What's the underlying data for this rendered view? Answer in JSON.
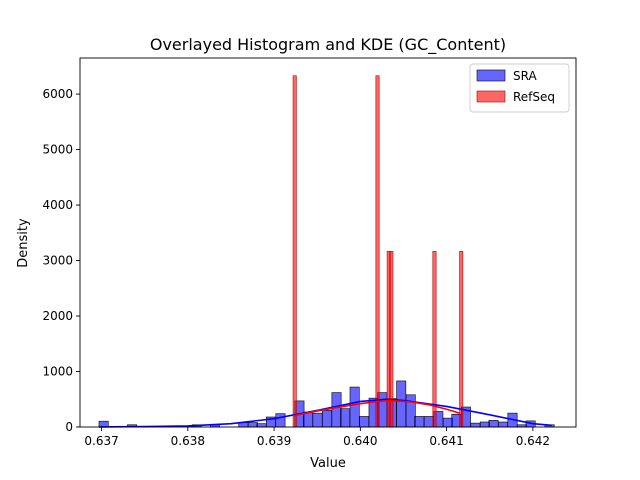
{
  "chart_data": {
    "type": "histogram",
    "title": "Overlayed Histogram and KDE (GC_Content)",
    "xlabel": "Value",
    "ylabel": "Density",
    "xlim": [
      0.63675,
      0.6425
    ],
    "ylim": [
      0,
      6650
    ],
    "xticks": [
      0.637,
      0.638,
      0.639,
      0.64,
      0.641,
      0.642
    ],
    "xtick_labels": [
      "0.637",
      "0.638",
      "0.639",
      "0.640",
      "0.641",
      "0.642"
    ],
    "yticks": [
      0,
      1000,
      2000,
      3000,
      4000,
      5000,
      6000
    ],
    "ytick_labels": [
      "0",
      "1000",
      "2000",
      "3000",
      "4000",
      "5000",
      "6000"
    ],
    "legend_position": "top-right",
    "series": [
      {
        "name": "SRA",
        "color": "#0000ff",
        "kde_color": "#0000ff",
        "bin_width": 0.0001076,
        "bins": [
          [
            0.63697,
            105
          ],
          [
            0.6373,
            40
          ],
          [
            0.63805,
            40
          ],
          [
            0.63826,
            40
          ],
          [
            0.63859,
            80
          ],
          [
            0.6387,
            80
          ],
          [
            0.6388,
            60
          ],
          [
            0.63891,
            180
          ],
          [
            0.63902,
            240
          ],
          [
            0.63924,
            470
          ],
          [
            0.63934,
            270
          ],
          [
            0.63945,
            250
          ],
          [
            0.63956,
            300
          ],
          [
            0.63967,
            620
          ],
          [
            0.63977,
            330
          ],
          [
            0.63988,
            720
          ],
          [
            0.63999,
            190
          ],
          [
            0.6401,
            520
          ],
          [
            0.6402,
            620
          ],
          [
            0.64031,
            510
          ],
          [
            0.64042,
            830
          ],
          [
            0.64053,
            580
          ],
          [
            0.64063,
            190
          ],
          [
            0.64074,
            190
          ],
          [
            0.64085,
            280
          ],
          [
            0.64096,
            160
          ],
          [
            0.64106,
            230
          ],
          [
            0.64117,
            360
          ],
          [
            0.64128,
            70
          ],
          [
            0.64139,
            90
          ],
          [
            0.64149,
            120
          ],
          [
            0.6416,
            90
          ],
          [
            0.64171,
            250
          ],
          [
            0.64182,
            40
          ],
          [
            0.64192,
            110
          ],
          [
            0.64214,
            40
          ]
        ],
        "kde": [
          [
            0.63697,
            2
          ],
          [
            0.6375,
            7
          ],
          [
            0.638,
            20
          ],
          [
            0.6385,
            60
          ],
          [
            0.639,
            150
          ],
          [
            0.6395,
            300
          ],
          [
            0.64,
            460
          ],
          [
            0.6403,
            500
          ],
          [
            0.6405,
            480
          ],
          [
            0.641,
            370
          ],
          [
            0.6415,
            220
          ],
          [
            0.642,
            60
          ],
          [
            0.64222,
            30
          ]
        ]
      },
      {
        "name": "RefSeq",
        "color": "#ff0000",
        "kde_color": "#ff0000",
        "bin_width": 3.85e-05,
        "bins": [
          [
            0.63922,
            6330
          ],
          [
            0.64018,
            6330
          ],
          [
            0.64031,
            3165
          ],
          [
            0.64034,
            3165
          ],
          [
            0.64084,
            3165
          ],
          [
            0.64115,
            3165
          ]
        ],
        "kde": [
          [
            0.63922,
            200
          ],
          [
            0.6395,
            290
          ],
          [
            0.6398,
            370
          ],
          [
            0.64,
            420
          ],
          [
            0.6402,
            460
          ],
          [
            0.64034,
            480
          ],
          [
            0.6406,
            450
          ],
          [
            0.6408,
            400
          ],
          [
            0.641,
            320
          ],
          [
            0.64115,
            250
          ]
        ]
      }
    ]
  }
}
